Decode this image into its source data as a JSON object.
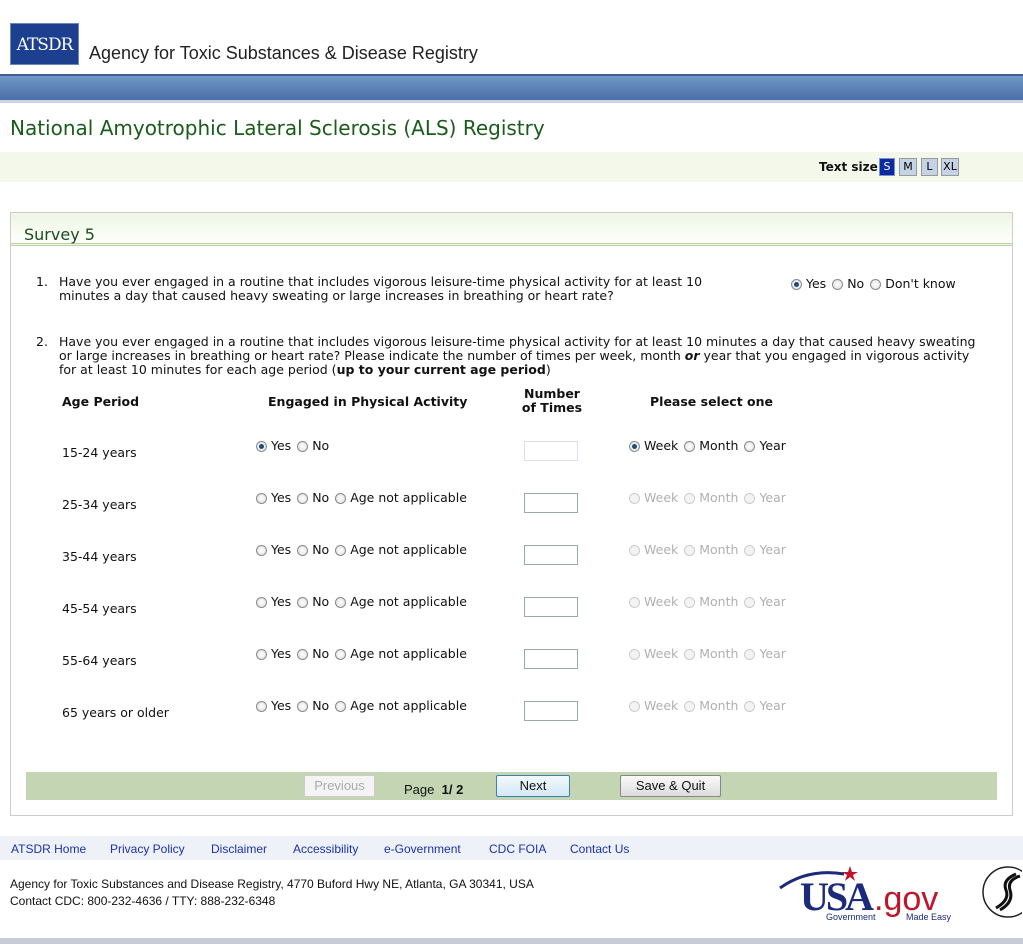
{
  "header": {
    "logo_text": "ATSDR",
    "agency": "Agency for Toxic Substances & Disease Registry"
  },
  "page_title": "National Amyotrophic Lateral Sclerosis (ALS) Registry",
  "text_size": {
    "label": "Text size:",
    "options": [
      "S",
      "M",
      "L",
      "XL"
    ],
    "selected": "S"
  },
  "survey": {
    "title": "Survey 5",
    "q1": {
      "number": "1.",
      "text": "Have you ever engaged in a routine that includes vigorous leisure-time physical activity for at least 10 minutes a day that caused heavy sweating or large increases in breathing or heart rate?",
      "options": [
        "Yes",
        "No",
        "Don't know"
      ],
      "selected": "Yes"
    },
    "q2": {
      "number": "2.",
      "text_a": "Have you ever engaged in a routine that includes vigorous leisure-time physical activity for at least 10 minutes a day that caused heavy sweating or large increases in breathing or heart rate? Please indicate the number of times per week, month ",
      "text_or": "or",
      "text_b": " year that you engaged in vigorous activity for at least 10 minutes for each age period (",
      "text_bold": "up to your current age period",
      "text_c": ")"
    },
    "columns": {
      "age": "Age Period",
      "engaged": "Engaged in Physical Activity",
      "number_1": "Number",
      "number_2": "of Times",
      "period": "Please select one"
    },
    "rows": [
      {
        "age": "15-24 years",
        "engaged": [
          "Yes",
          "No"
        ],
        "engaged_selected": "Yes",
        "count": "",
        "period": [
          "Week",
          "Month",
          "Year"
        ],
        "period_selected": "Week",
        "period_enabled": true
      },
      {
        "age": "25-34 years",
        "engaged": [
          "Yes",
          "No",
          "Age not applicable"
        ],
        "engaged_selected": null,
        "count": "",
        "period": [
          "Week",
          "Month",
          "Year"
        ],
        "period_selected": null,
        "period_enabled": false
      },
      {
        "age": "35-44 years",
        "engaged": [
          "Yes",
          "No",
          "Age not applicable"
        ],
        "engaged_selected": null,
        "count": "",
        "period": [
          "Week",
          "Month",
          "Year"
        ],
        "period_selected": null,
        "period_enabled": false
      },
      {
        "age": "45-54 years",
        "engaged": [
          "Yes",
          "No",
          "Age not applicable"
        ],
        "engaged_selected": null,
        "count": "",
        "period": [
          "Week",
          "Month",
          "Year"
        ],
        "period_selected": null,
        "period_enabled": false
      },
      {
        "age": "55-64 years",
        "engaged": [
          "Yes",
          "No",
          "Age not applicable"
        ],
        "engaged_selected": null,
        "count": "",
        "period": [
          "Week",
          "Month",
          "Year"
        ],
        "period_selected": null,
        "period_enabled": false
      },
      {
        "age": "65 years or older",
        "engaged": [
          "Yes",
          "No",
          "Age not applicable"
        ],
        "engaged_selected": null,
        "count": "",
        "period": [
          "Week",
          "Month",
          "Year"
        ],
        "period_selected": null,
        "period_enabled": false
      }
    ]
  },
  "nav": {
    "previous": "Previous",
    "page_label": "Page",
    "page_value": "1/ 2",
    "next": "Next",
    "save_quit": "Save & Quit"
  },
  "footer": {
    "links": [
      "ATSDR Home",
      "Privacy Policy",
      "Disclaimer",
      "Accessibility",
      "e-Government",
      "CDC FOIA",
      "Contact Us"
    ],
    "address": "Agency for Toxic Substances and Disease Registry, 4770 Buford Hwy NE, Atlanta, GA 30341, USA",
    "contact": "Contact CDC: 800-232-4636 / TTY: 888-232-6348",
    "usagov_logo": "USA.gov Government Made Easy",
    "hhs_seal": "HHS seal"
  },
  "colors": {
    "title_green": "#1a5c1a",
    "blue_bar": "#4a6fa8",
    "nav_bar": "#c3d5b2",
    "link": "#1a33a8",
    "text_size_selected": "#0a2aa0"
  }
}
